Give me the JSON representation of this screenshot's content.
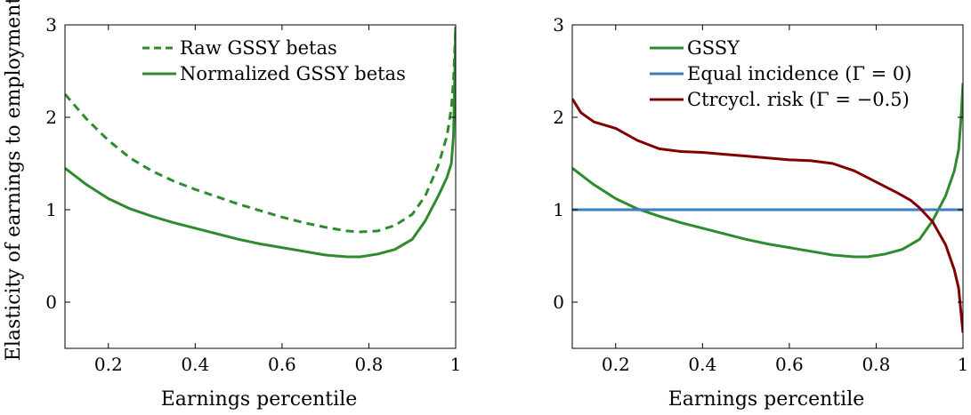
{
  "colors": {
    "green": "#2e8b2e",
    "blue": "#3b7fbf",
    "darkred": "#800000"
  },
  "chart_data": [
    {
      "type": "line",
      "xlabel": "Earnings percentile",
      "ylabel": "Elasticity of earnings to employment",
      "xlim": [
        0.1,
        1.0
      ],
      "ylim": [
        -0.5,
        3.0
      ],
      "xticks": [
        "0.2",
        "0.4",
        "0.6",
        "0.8",
        "1"
      ],
      "xtick_values": [
        0.2,
        0.4,
        0.6,
        0.8,
        1.0
      ],
      "yticks": [
        "0",
        "1",
        "2",
        "3"
      ],
      "ytick_values": [
        0,
        1,
        2,
        3
      ],
      "legend_position": "top-right",
      "series": [
        {
          "name": "Raw GSSY betas",
          "style": "dashed",
          "color": "#2e8b2e",
          "x": [
            0.1,
            0.15,
            0.2,
            0.25,
            0.3,
            0.35,
            0.4,
            0.45,
            0.5,
            0.55,
            0.6,
            0.65,
            0.7,
            0.75,
            0.78,
            0.82,
            0.86,
            0.9,
            0.93,
            0.96,
            0.98,
            0.99,
            0.995,
            1.0
          ],
          "y": [
            2.25,
            1.98,
            1.75,
            1.56,
            1.42,
            1.31,
            1.22,
            1.14,
            1.06,
            0.99,
            0.92,
            0.86,
            0.81,
            0.77,
            0.76,
            0.77,
            0.83,
            0.95,
            1.15,
            1.48,
            1.8,
            2.1,
            2.4,
            2.98
          ]
        },
        {
          "name": "Normalized GSSY betas",
          "style": "solid",
          "color": "#2e8b2e",
          "x": [
            0.1,
            0.15,
            0.2,
            0.25,
            0.3,
            0.35,
            0.4,
            0.45,
            0.5,
            0.55,
            0.6,
            0.65,
            0.7,
            0.75,
            0.78,
            0.82,
            0.86,
            0.9,
            0.93,
            0.96,
            0.98,
            0.99,
            0.995,
            1.0
          ],
          "y": [
            1.45,
            1.27,
            1.12,
            1.01,
            0.93,
            0.86,
            0.8,
            0.74,
            0.68,
            0.63,
            0.59,
            0.55,
            0.51,
            0.49,
            0.49,
            0.52,
            0.57,
            0.68,
            0.88,
            1.15,
            1.35,
            1.5,
            1.8,
            2.98
          ]
        }
      ]
    },
    {
      "type": "line",
      "xlabel": "Earnings percentile",
      "ylabel": "",
      "xlim": [
        0.1,
        1.0
      ],
      "ylim": [
        -0.5,
        3.0
      ],
      "xticks": [
        "0.2",
        "0.4",
        "0.6",
        "0.8",
        "1"
      ],
      "xtick_values": [
        0.2,
        0.4,
        0.6,
        0.8,
        1.0
      ],
      "yticks": [
        "0",
        "1",
        "2",
        "3"
      ],
      "ytick_values": [
        0,
        1,
        2,
        3
      ],
      "legend_position": "top-right",
      "series": [
        {
          "name": "GSSY",
          "style": "solid",
          "color": "#2e8b2e",
          "x": [
            0.1,
            0.15,
            0.2,
            0.25,
            0.3,
            0.35,
            0.4,
            0.45,
            0.5,
            0.55,
            0.6,
            0.65,
            0.7,
            0.75,
            0.78,
            0.82,
            0.86,
            0.9,
            0.93,
            0.96,
            0.98,
            0.99,
            0.995,
            1.0
          ],
          "y": [
            1.45,
            1.27,
            1.12,
            1.01,
            0.93,
            0.86,
            0.8,
            0.74,
            0.68,
            0.63,
            0.59,
            0.55,
            0.51,
            0.49,
            0.49,
            0.52,
            0.57,
            0.68,
            0.88,
            1.15,
            1.42,
            1.65,
            1.95,
            2.37
          ]
        },
        {
          "name": "Equal incidence (Γ = 0)",
          "style": "solid",
          "color": "#3b7fbf",
          "x": [
            0.1,
            1.0
          ],
          "y": [
            1.0,
            1.0
          ]
        },
        {
          "name": "Ctrcycl. risk (Γ = −0.5)",
          "style": "solid",
          "color": "#800000",
          "x": [
            0.1,
            0.12,
            0.15,
            0.2,
            0.25,
            0.3,
            0.35,
            0.4,
            0.45,
            0.5,
            0.55,
            0.6,
            0.65,
            0.7,
            0.75,
            0.8,
            0.85,
            0.88,
            0.9,
            0.93,
            0.96,
            0.98,
            0.99,
            1.0
          ],
          "y": [
            2.2,
            2.05,
            1.95,
            1.88,
            1.75,
            1.66,
            1.63,
            1.62,
            1.6,
            1.58,
            1.56,
            1.54,
            1.53,
            1.5,
            1.42,
            1.3,
            1.18,
            1.1,
            1.02,
            0.87,
            0.62,
            0.35,
            0.15,
            -0.33
          ]
        }
      ]
    }
  ]
}
